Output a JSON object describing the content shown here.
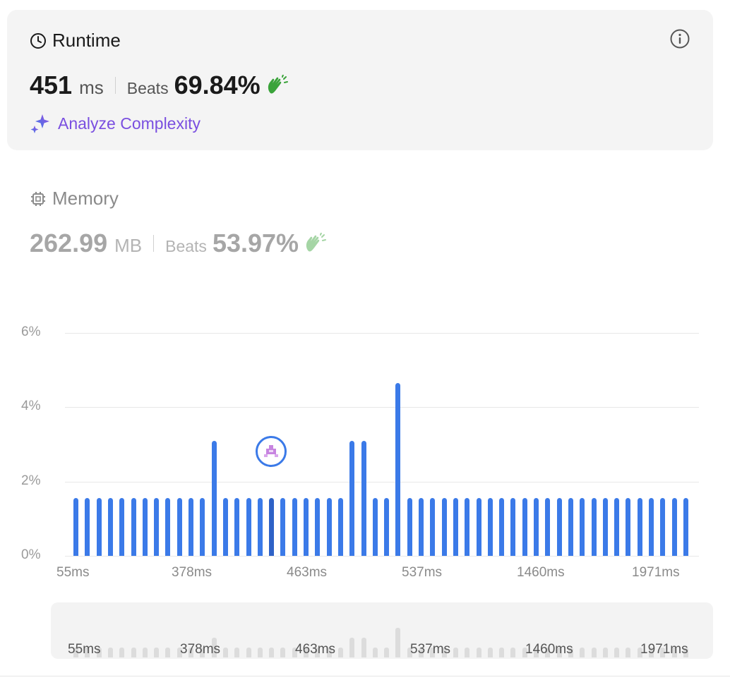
{
  "runtime": {
    "title": "Runtime",
    "value": "451",
    "unit": "ms",
    "beats_label": "Beats",
    "beats_value": "69.84%",
    "analyze_label": "Analyze Complexity"
  },
  "memory": {
    "title": "Memory",
    "value": "262.99",
    "unit": "MB",
    "beats_label": "Beats",
    "beats_value": "53.97%"
  },
  "colors": {
    "bar": "#3b7ae8",
    "accent_purple": "#7a4fe0",
    "clap_green": "#3aa33a"
  },
  "icons": [
    "clock-icon",
    "info-icon",
    "clap-icon",
    "sparkle-icon",
    "chip-icon",
    "avatar-icon"
  ],
  "chart_data": {
    "type": "bar",
    "ylim": [
      0,
      6
    ],
    "y_ticks": [
      "0%",
      "2%",
      "4%",
      "6%"
    ],
    "x_tick_labels": [
      "55ms",
      "378ms",
      "463ms",
      "537ms",
      "1460ms",
      "1971ms"
    ],
    "values": [
      1.55,
      1.55,
      1.55,
      1.55,
      1.55,
      1.55,
      1.55,
      1.55,
      1.55,
      1.55,
      1.55,
      1.55,
      3.1,
      1.55,
      1.55,
      1.55,
      1.55,
      1.55,
      1.55,
      1.55,
      1.55,
      1.55,
      1.55,
      1.55,
      3.1,
      3.1,
      1.55,
      1.55,
      4.65,
      1.55,
      1.55,
      1.55,
      1.55,
      1.55,
      1.55,
      1.55,
      1.55,
      1.55,
      1.55,
      1.55,
      1.55,
      1.55,
      1.55,
      1.55,
      1.55,
      1.55,
      1.55,
      1.55,
      1.55,
      1.55,
      1.55,
      1.55,
      1.55,
      1.55
    ],
    "current_index": 17
  }
}
